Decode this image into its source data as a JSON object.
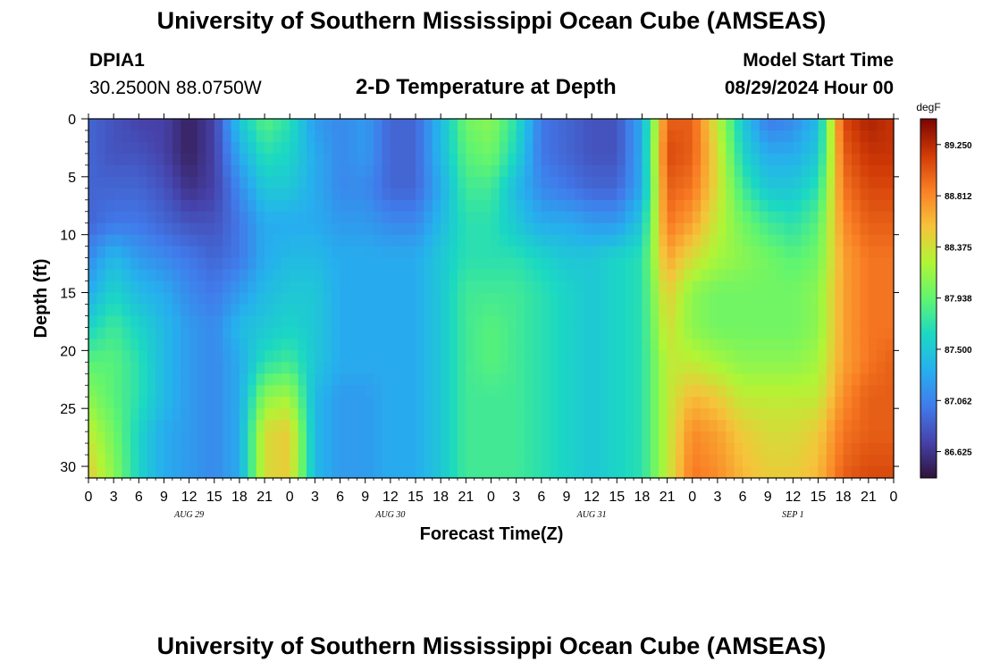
{
  "page": {
    "title": "University of Southern Mississippi Ocean Cube (AMSEAS)",
    "station_id": "DPIA1",
    "station_coords": "30.2500N  88.0750W",
    "plot_title": "2-D Temperature at Depth",
    "model_start_label": "Model Start Time",
    "model_start_value": "08/29/2024 Hour 00",
    "footer_title": "University of Southern Mississippi Ocean Cube (AMSEAS)"
  },
  "chart_data": {
    "type": "heatmap",
    "title": "2-D Temperature at Depth",
    "xlabel": "Forecast Time(Z)",
    "ylabel": "Depth (ft)",
    "x_unit_hours_start": 0,
    "x_unit_hours_end": 96,
    "x_tick_step_hours": 3,
    "x_tick_labels": [
      "0",
      "3",
      "6",
      "9",
      "12",
      "15",
      "18",
      "21",
      "0",
      "3",
      "6",
      "9",
      "12",
      "15",
      "18",
      "21",
      "0",
      "3",
      "6",
      "9",
      "12",
      "15",
      "18",
      "21",
      "0",
      "3",
      "6",
      "9",
      "12",
      "15",
      "18",
      "21",
      "0"
    ],
    "date_labels": [
      {
        "label": "AUG 29",
        "hour": 12
      },
      {
        "label": "AUG 30",
        "hour": 36
      },
      {
        "label": "AUG 31",
        "hour": 60
      },
      {
        "label": "SEP 1",
        "hour": 84
      }
    ],
    "ylim": [
      0,
      31
    ],
    "y_tick_labels": [
      "0",
      "5",
      "10",
      "15",
      "20",
      "25",
      "30"
    ],
    "y_tick_values": [
      0,
      5,
      10,
      15,
      20,
      25,
      30
    ],
    "colorbar": {
      "unit": "degF",
      "min": 86.4,
      "max": 89.47,
      "tick_labels": [
        "89.250",
        "88.812",
        "88.375",
        "87.938",
        "87.500",
        "87.062",
        "86.625"
      ],
      "tick_values": [
        89.25,
        88.812,
        88.375,
        87.938,
        87.5,
        87.062,
        86.625
      ]
    },
    "grid": false,
    "field": {
      "depth_ft": [
        0,
        3,
        6,
        9,
        12,
        15,
        18,
        21,
        24,
        27,
        31
      ],
      "rows": [
        {
          "hour": 0,
          "temps": [
            86.9,
            86.9,
            86.9,
            86.9,
            87.1,
            87.3,
            87.6,
            87.9,
            88.1,
            88.3,
            88.5
          ]
        },
        {
          "hour": 3,
          "temps": [
            86.8,
            86.8,
            86.9,
            87.0,
            87.4,
            87.6,
            87.8,
            87.9,
            87.9,
            88.0,
            88.1
          ]
        },
        {
          "hour": 6,
          "temps": [
            86.7,
            86.8,
            86.9,
            87.0,
            87.2,
            87.4,
            87.6,
            87.7,
            87.7,
            87.6,
            87.6
          ]
        },
        {
          "hour": 9,
          "temps": [
            86.7,
            86.7,
            86.8,
            86.9,
            87.1,
            87.3,
            87.4,
            87.4,
            87.4,
            87.3,
            87.3
          ]
        },
        {
          "hour": 12,
          "temps": [
            86.5,
            86.5,
            86.6,
            86.8,
            87.0,
            87.1,
            87.2,
            87.2,
            87.2,
            87.2,
            87.2
          ]
        },
        {
          "hour": 15,
          "temps": [
            86.7,
            86.7,
            86.7,
            86.8,
            86.9,
            87.0,
            87.1,
            87.1,
            87.1,
            87.1,
            87.1
          ]
        },
        {
          "hour": 18,
          "temps": [
            87.5,
            87.3,
            87.1,
            87.0,
            87.0,
            87.2,
            87.4,
            87.3,
            87.3,
            87.3,
            87.3
          ]
        },
        {
          "hour": 21,
          "temps": [
            87.9,
            87.7,
            87.5,
            87.3,
            87.3,
            87.4,
            87.5,
            87.7,
            88.1,
            88.4,
            88.4
          ]
        },
        {
          "hour": 24,
          "temps": [
            87.7,
            87.6,
            87.5,
            87.3,
            87.4,
            87.5,
            87.6,
            87.8,
            88.2,
            88.5,
            88.5
          ]
        },
        {
          "hour": 27,
          "temps": [
            87.2,
            87.3,
            87.3,
            87.3,
            87.4,
            87.5,
            87.5,
            87.5,
            87.4,
            87.4,
            87.4
          ]
        },
        {
          "hour": 30,
          "temps": [
            87.1,
            87.1,
            87.1,
            87.2,
            87.3,
            87.3,
            87.3,
            87.3,
            87.2,
            87.2,
            87.2
          ]
        },
        {
          "hour": 33,
          "temps": [
            87.2,
            87.2,
            87.1,
            87.2,
            87.3,
            87.3,
            87.3,
            87.3,
            87.2,
            87.2,
            87.2
          ]
        },
        {
          "hour": 36,
          "temps": [
            86.9,
            86.9,
            86.9,
            87.1,
            87.3,
            87.3,
            87.3,
            87.3,
            87.3,
            87.3,
            87.3
          ]
        },
        {
          "hour": 39,
          "temps": [
            86.9,
            86.9,
            86.9,
            87.1,
            87.3,
            87.3,
            87.3,
            87.3,
            87.3,
            87.3,
            87.3
          ]
        },
        {
          "hour": 42,
          "temps": [
            87.4,
            87.4,
            87.3,
            87.4,
            87.5,
            87.5,
            87.5,
            87.5,
            87.5,
            87.5,
            87.5
          ]
        },
        {
          "hour": 45,
          "temps": [
            88.0,
            87.9,
            87.8,
            87.7,
            87.7,
            87.8,
            87.8,
            87.8,
            87.8,
            87.8,
            87.8
          ]
        },
        {
          "hour": 48,
          "temps": [
            88.1,
            88.0,
            87.8,
            87.7,
            87.7,
            87.8,
            87.9,
            87.9,
            87.8,
            87.8,
            87.8
          ]
        },
        {
          "hour": 51,
          "temps": [
            87.7,
            87.6,
            87.4,
            87.5,
            87.7,
            87.8,
            87.8,
            87.8,
            87.8,
            87.8,
            87.8
          ]
        },
        {
          "hour": 54,
          "temps": [
            87.0,
            87.0,
            87.1,
            87.3,
            87.6,
            87.7,
            87.7,
            87.7,
            87.7,
            87.7,
            87.7
          ]
        },
        {
          "hour": 57,
          "temps": [
            86.9,
            86.9,
            87.0,
            87.3,
            87.5,
            87.6,
            87.6,
            87.6,
            87.6,
            87.6,
            87.6
          ]
        },
        {
          "hour": 60,
          "temps": [
            86.8,
            86.8,
            86.9,
            87.2,
            87.5,
            87.5,
            87.5,
            87.5,
            87.5,
            87.5,
            87.5
          ]
        },
        {
          "hour": 63,
          "temps": [
            86.8,
            86.8,
            86.9,
            87.2,
            87.6,
            87.6,
            87.6,
            87.6,
            87.6,
            87.6,
            87.6
          ]
        },
        {
          "hour": 66,
          "temps": [
            87.3,
            87.3,
            87.3,
            87.5,
            87.7,
            87.7,
            87.7,
            87.7,
            87.7,
            87.7,
            87.7
          ]
        },
        {
          "hour": 69,
          "temps": [
            89.0,
            89.1,
            89.0,
            88.9,
            88.7,
            88.5,
            88.4,
            88.3,
            88.3,
            88.3,
            88.3
          ]
        },
        {
          "hour": 72,
          "temps": [
            89.0,
            89.0,
            88.9,
            88.7,
            88.4,
            88.1,
            88.1,
            88.3,
            88.6,
            88.8,
            88.9
          ]
        },
        {
          "hour": 75,
          "temps": [
            88.3,
            88.4,
            88.4,
            88.3,
            88.2,
            88.0,
            88.0,
            88.2,
            88.5,
            88.7,
            88.8
          ]
        },
        {
          "hour": 78,
          "temps": [
            87.5,
            87.6,
            87.8,
            88.0,
            88.1,
            88.0,
            88.0,
            88.1,
            88.3,
            88.5,
            88.6
          ]
        },
        {
          "hour": 81,
          "temps": [
            87.0,
            87.3,
            87.5,
            87.8,
            88.0,
            88.0,
            88.0,
            88.1,
            88.3,
            88.4,
            88.5
          ]
        },
        {
          "hour": 84,
          "temps": [
            87.1,
            87.3,
            87.5,
            87.7,
            87.9,
            88.0,
            88.0,
            88.1,
            88.3,
            88.4,
            88.5
          ]
        },
        {
          "hour": 87,
          "temps": [
            87.4,
            87.5,
            87.7,
            87.9,
            88.0,
            88.1,
            88.1,
            88.2,
            88.3,
            88.5,
            88.6
          ]
        },
        {
          "hour": 90,
          "temps": [
            89.1,
            89.0,
            88.9,
            88.8,
            88.7,
            88.7,
            88.7,
            88.7,
            88.8,
            88.9,
            89.0
          ]
        },
        {
          "hour": 93,
          "temps": [
            89.3,
            89.2,
            89.1,
            89.0,
            88.9,
            88.9,
            88.9,
            88.9,
            89.0,
            89.0,
            89.1
          ]
        },
        {
          "hour": 96,
          "temps": [
            89.2,
            89.2,
            89.1,
            89.0,
            88.9,
            88.9,
            88.9,
            89.0,
            89.0,
            89.0,
            89.1
          ]
        }
      ]
    }
  }
}
